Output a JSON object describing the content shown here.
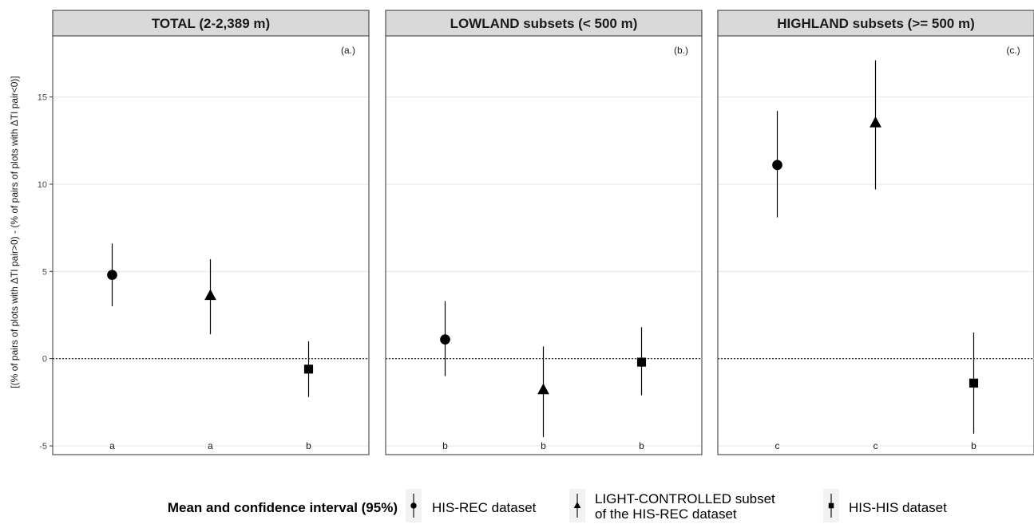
{
  "chart_data": {
    "type": "scatter",
    "subtype": "point-range (mean with 95% confidence interval)",
    "ylabel": "[(% of pairs of plots with ΔTI pair>0) - (% of pairs of plots with ΔTI pair<0)]",
    "xlabel": "",
    "ylim": [
      -5.5,
      18.5
    ],
    "yticks": [
      -5,
      0,
      5,
      10,
      15
    ],
    "grid": true,
    "reference_line": 0,
    "legend": {
      "title": "Mean and confidence interval (95%)",
      "position": "bottom",
      "entries": [
        {
          "label": "HIS-REC dataset",
          "shape": "circle"
        },
        {
          "label_lines": [
            "LIGHT-CONTROLLED subset",
            "of the HIS-REC dataset"
          ],
          "shape": "triangle"
        },
        {
          "label": "HIS-HIS dataset",
          "shape": "square"
        }
      ]
    },
    "panels": [
      {
        "strip": "TOTAL (2-2,389 m)",
        "tag": "(a.)",
        "series": [
          {
            "shape": "circle",
            "mean": 4.8,
            "lower": 3.0,
            "upper": 6.6,
            "group": "a"
          },
          {
            "shape": "triangle",
            "mean": 3.6,
            "lower": 1.4,
            "upper": 5.7,
            "group": "a"
          },
          {
            "shape": "square",
            "mean": -0.6,
            "lower": -2.2,
            "upper": 1.0,
            "group": "b"
          }
        ]
      },
      {
        "strip": "LOWLAND subsets (< 500 m)",
        "tag": "(b.)",
        "series": [
          {
            "shape": "circle",
            "mean": 1.1,
            "lower": -1.0,
            "upper": 3.3,
            "group": "b"
          },
          {
            "shape": "triangle",
            "mean": -1.8,
            "lower": -4.5,
            "upper": 0.7,
            "group": "b"
          },
          {
            "shape": "square",
            "mean": -0.2,
            "lower": -2.1,
            "upper": 1.8,
            "group": "b"
          }
        ]
      },
      {
        "strip": "HIGHLAND subsets (>= 500 m)",
        "tag": "(c.)",
        "series": [
          {
            "shape": "circle",
            "mean": 11.1,
            "lower": 8.1,
            "upper": 14.2,
            "group": "c"
          },
          {
            "shape": "triangle",
            "mean": 13.5,
            "lower": 9.7,
            "upper": 17.1,
            "group": "c"
          },
          {
            "shape": "square",
            "mean": -1.4,
            "lower": -4.3,
            "upper": 1.5,
            "group": "b"
          }
        ]
      }
    ],
    "colors": {
      "marker": "#000000",
      "grid": "#e6e6e6",
      "strip_fill": "#d9d9d9",
      "border": "#333333"
    }
  }
}
